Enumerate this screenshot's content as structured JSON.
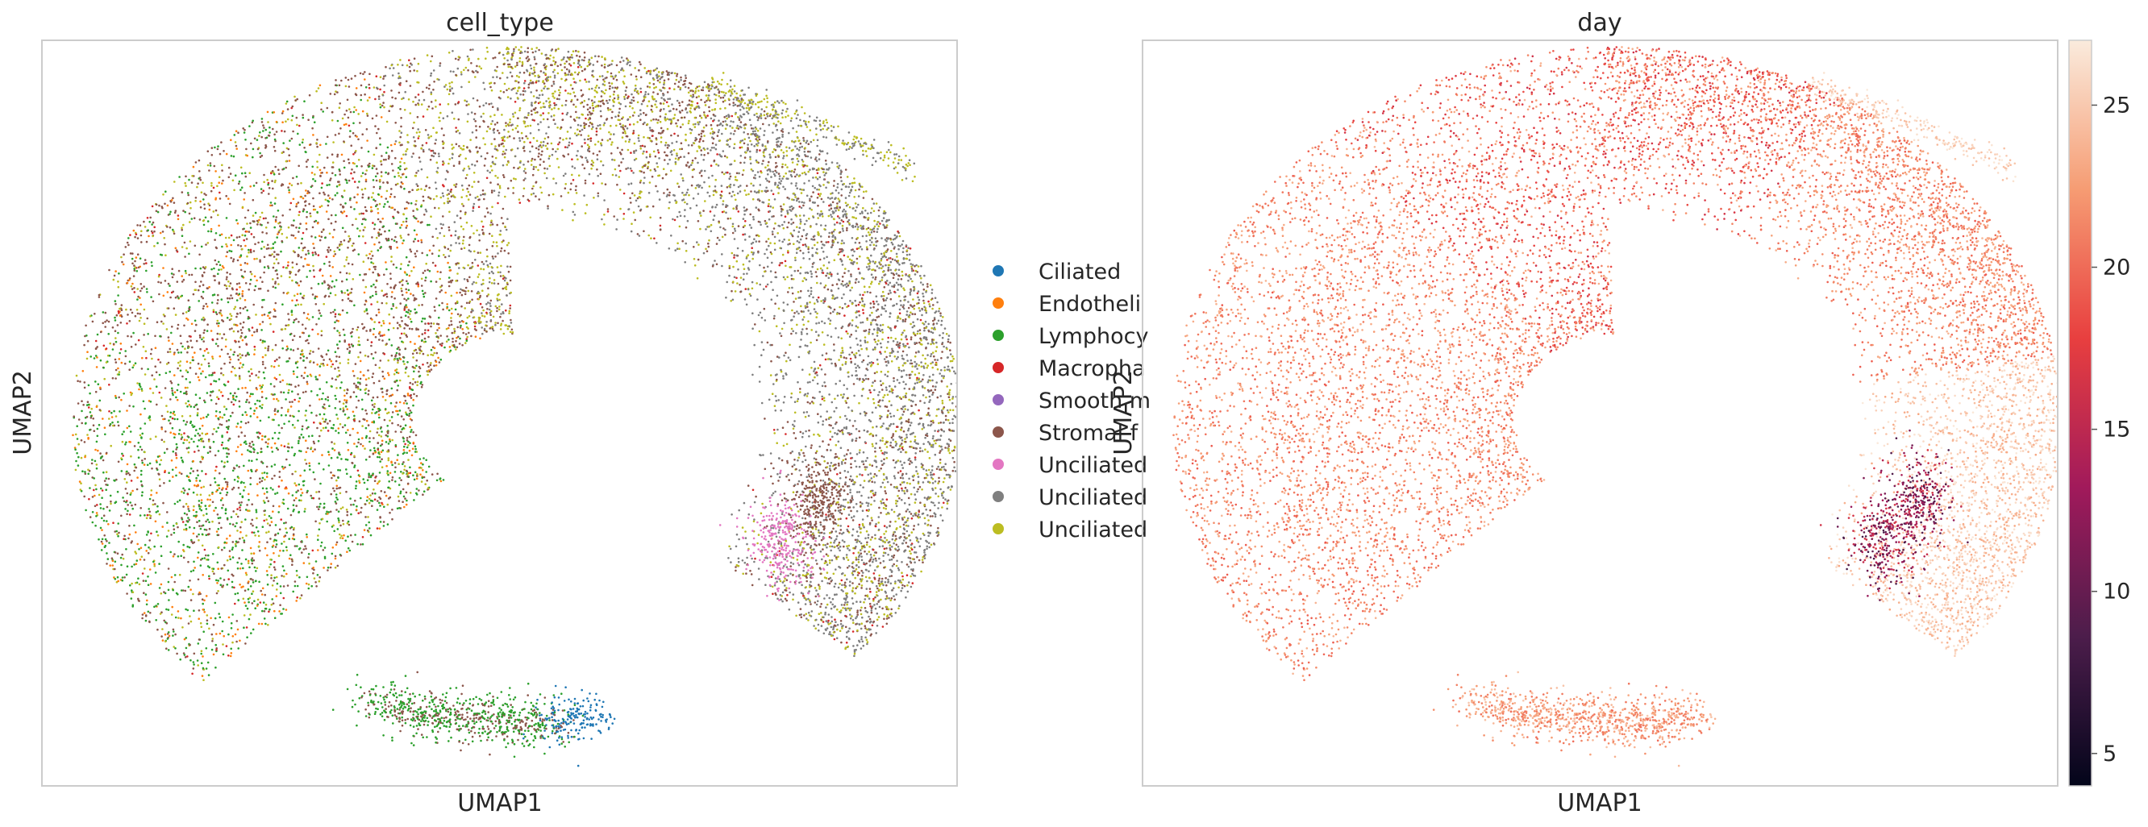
{
  "chart_data": [
    {
      "type": "scatter",
      "title": "cell_type",
      "xlabel": "UMAP1",
      "ylabel": "UMAP2",
      "grid": false,
      "legend_placement": "right",
      "categories": [
        {
          "name": "Ciliated",
          "color": "#1f77b4"
        },
        {
          "name": "Endotheli",
          "color": "#ff7f0e"
        },
        {
          "name": "Lymphocy",
          "color": "#2ca02c"
        },
        {
          "name": "Macropha",
          "color": "#d62728"
        },
        {
          "name": "Smooth m",
          "color": "#9467bd"
        },
        {
          "name": "Stromal f",
          "color": "#8c564b"
        },
        {
          "name": "Unciliated",
          "color": "#e377c2"
        },
        {
          "name": "Unciliated",
          "color": "#7f7f7f"
        },
        {
          "name": "Unciliated",
          "color": "#bcbd22"
        }
      ]
    },
    {
      "type": "scatter",
      "title": "day",
      "xlabel": "UMAP1",
      "ylabel": "UMAP2",
      "grid": false,
      "colormap": "rocket",
      "colorbar": {
        "ticks": [
          5,
          10,
          15,
          20,
          25
        ],
        "range": [
          4,
          27
        ]
      }
    }
  ]
}
